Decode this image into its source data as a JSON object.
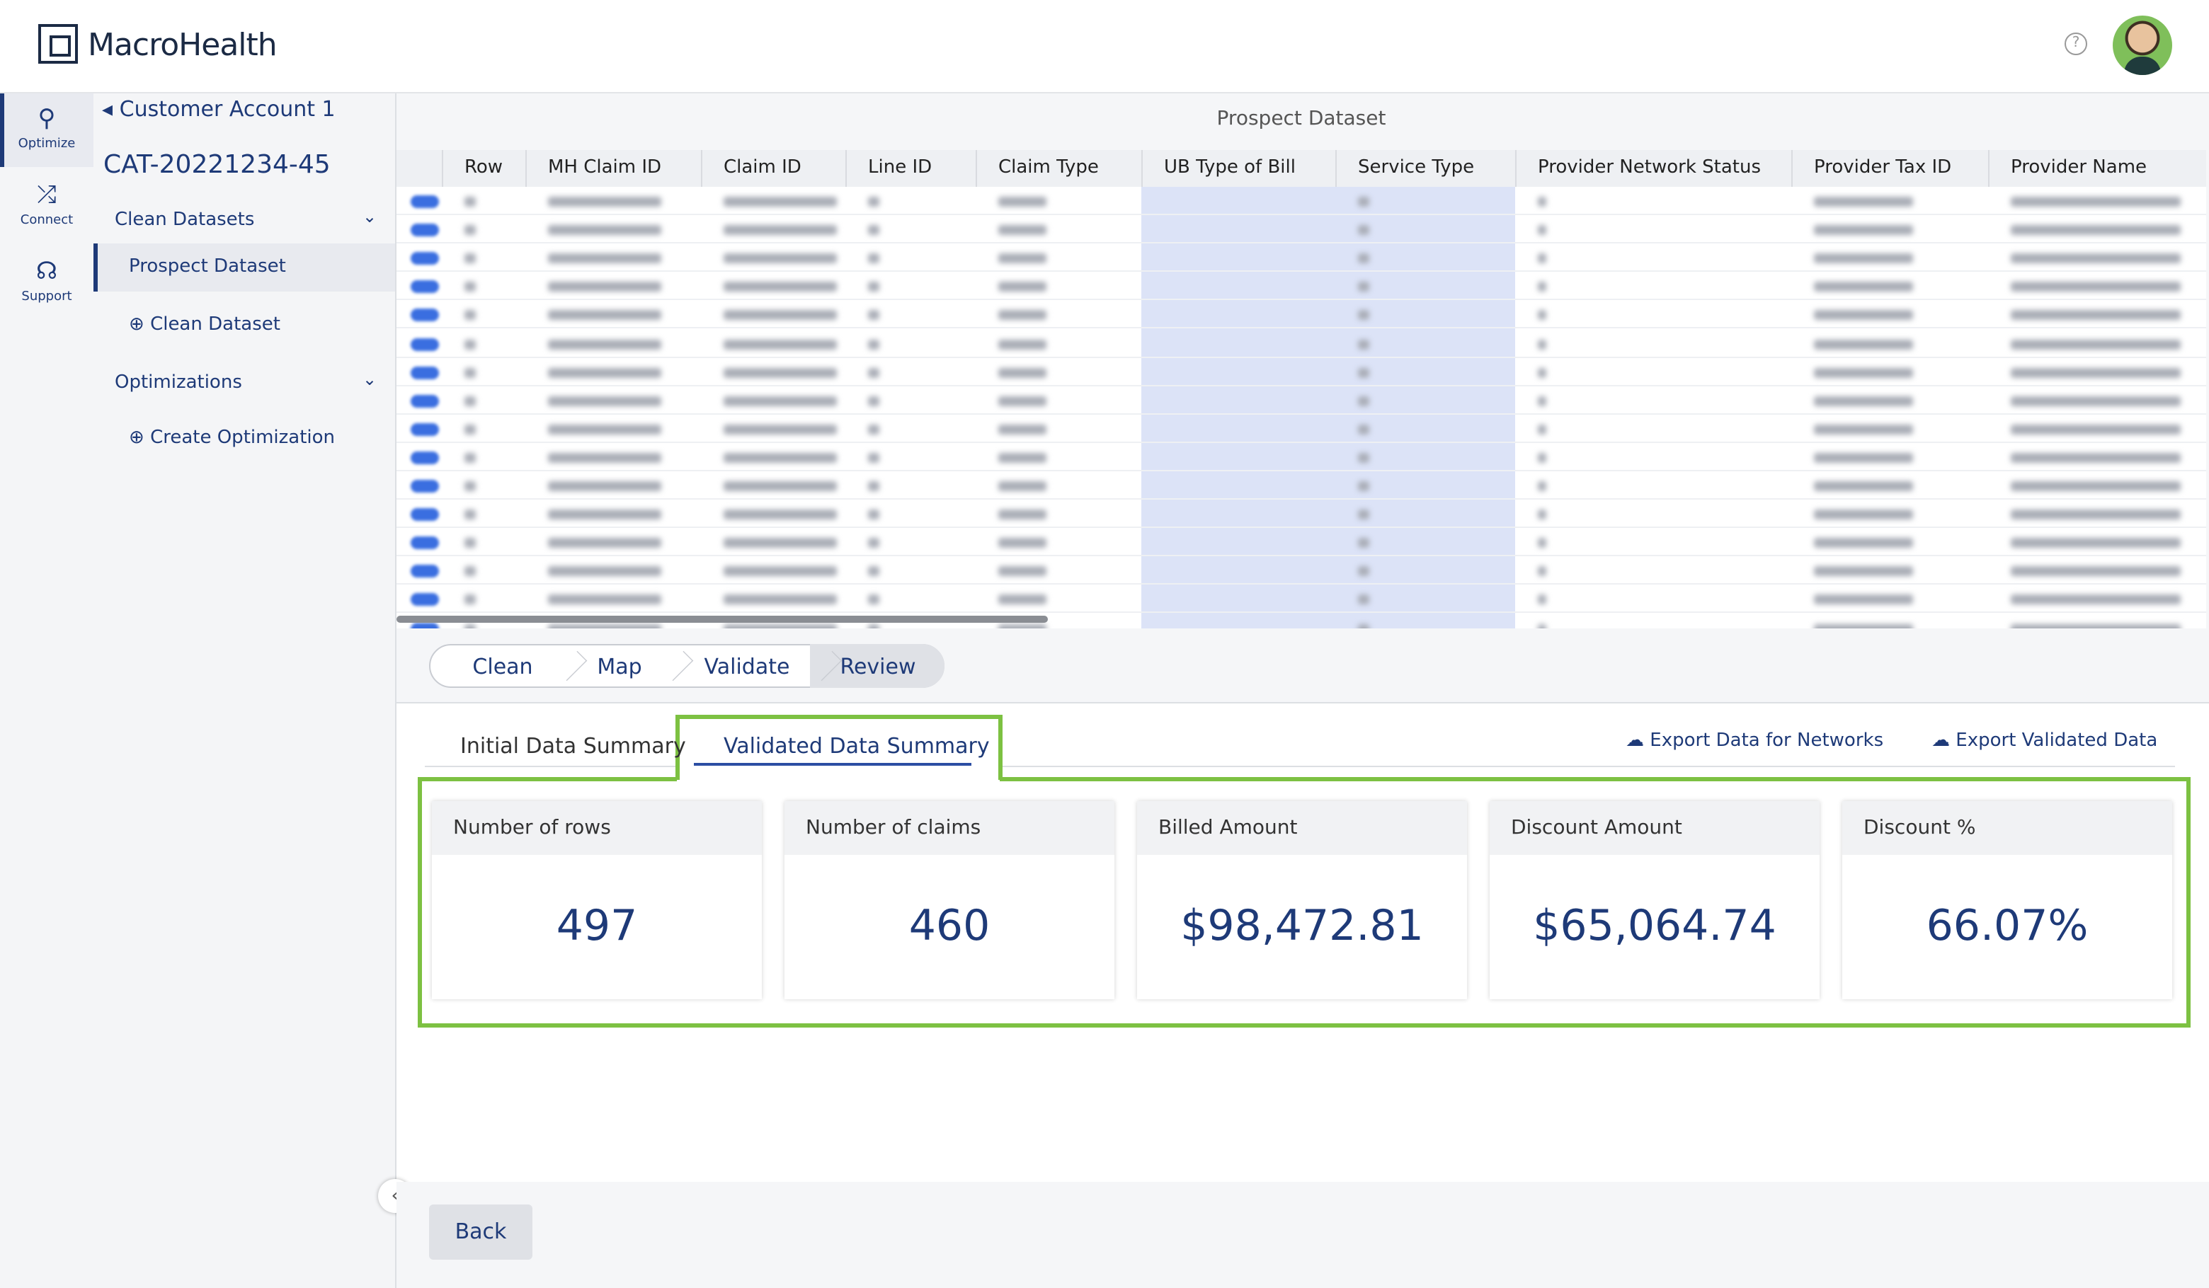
{
  "header": {
    "logo": "MacroHealth"
  },
  "nav": [
    {
      "label": "Optimize"
    },
    {
      "label": "Connect"
    },
    {
      "label": "Support"
    }
  ],
  "sidebar": {
    "back": "Customer Account 1",
    "id": "CAT-20221234-45",
    "section1": "Clean Datasets",
    "item1": "Prospect Dataset",
    "add1": "Clean Dataset",
    "section2": "Optimizations",
    "add2": "Create Optimization"
  },
  "table": {
    "title": "Prospect Dataset",
    "columns": [
      "Row",
      "MH Claim ID",
      "Claim ID",
      "Line ID",
      "Claim Type",
      "UB Type of Bill",
      "Service Type",
      "Provider Network Status",
      "Provider Tax ID",
      "Provider Name"
    ]
  },
  "steps": [
    "Clean",
    "Map",
    "Validate",
    "Review"
  ],
  "tabs": [
    "Initial Data Summary",
    "Validated Data Summary"
  ],
  "exports": [
    "Export Data for Networks",
    "Export Validated Data"
  ],
  "cards": [
    {
      "label": "Number of rows",
      "value": "497"
    },
    {
      "label": "Number of claims",
      "value": "460"
    },
    {
      "label": "Billed Amount",
      "value": "$98,472.81"
    },
    {
      "label": "Discount Amount",
      "value": "$65,064.74"
    },
    {
      "label": "Discount %",
      "value": "66.07%"
    }
  ],
  "back_button": "Back"
}
